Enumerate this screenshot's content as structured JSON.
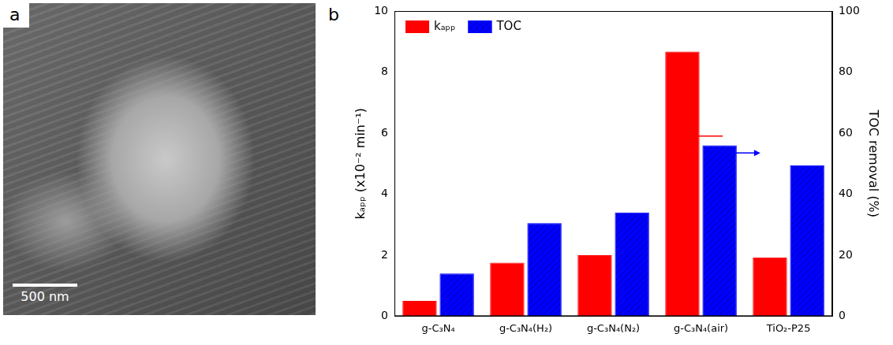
{
  "image_panel": {
    "label": "a",
    "scale_bar_label": "500 nm"
  },
  "chart_panel_label": "b",
  "chart_data": {
    "type": "bar",
    "categories": [
      "g-C₃N₄",
      "g-C₃N₄(H₂)",
      "g-C₃N₄(N₂)",
      "g-C₃N₄(air)",
      "TiO₂-P25"
    ],
    "series": [
      {
        "name": "kₐₚₚ",
        "color": "#ff0000",
        "values": [
          0.5,
          1.75,
          2.0,
          8.67,
          1.93
        ]
      },
      {
        "name": "TOC",
        "color": "#0000ff",
        "axis": "y2",
        "values": [
          14,
          30.5,
          34,
          56,
          49.5
        ]
      }
    ],
    "y_label": "kₐₚₚ (x10⁻² min⁻¹)",
    "y2_label": "TOC removal (%)",
    "ylim": [
      0,
      10
    ],
    "yticks": [
      0,
      2,
      4,
      6,
      8,
      10
    ],
    "y2lim": [
      0,
      100
    ],
    "y2ticks": [
      0,
      20,
      40,
      60,
      80,
      100
    ],
    "grid": false,
    "legend": "upper left"
  }
}
